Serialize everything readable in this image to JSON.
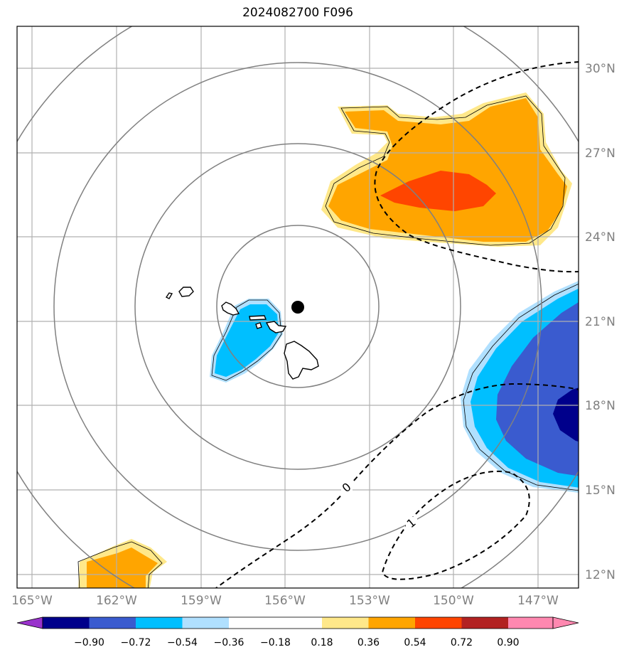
{
  "title": "2024082700 F096",
  "x_axis": {
    "tick_labels": [
      "165°W",
      "162°W",
      "159°W",
      "156°W",
      "153°W",
      "150°W",
      "147°W"
    ]
  },
  "y_axis": {
    "tick_labels": [
      "30°N",
      "27°N",
      "24°N",
      "21°N",
      "18°N",
      "15°N",
      "12°N"
    ]
  },
  "contour_labels": [
    "0",
    "1"
  ],
  "colorbar": {
    "tick_labels": [
      "−0.90",
      "−0.72",
      "−0.54",
      "−0.36",
      "−0.18",
      "0.18",
      "0.36",
      "0.54",
      "0.72",
      "0.90"
    ],
    "colors": [
      "#9932cc",
      "#00008b",
      "#3a5bcf",
      "#00bfff",
      "#b0e0ff",
      "#ffffff",
      "#ffe88a",
      "#ffa500",
      "#ff4500",
      "#b22222",
      "#ff88b0"
    ]
  },
  "colors": {
    "land_outline": "#000000",
    "range_rings": "#808080",
    "grid": "#b0b0b0",
    "center_marker": "#000000"
  }
}
